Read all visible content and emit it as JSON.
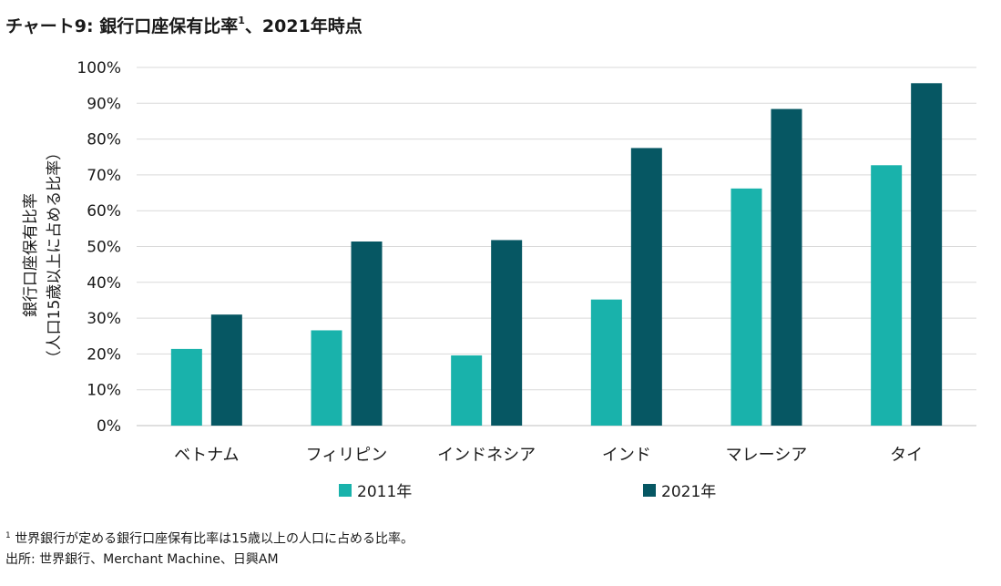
{
  "title": {
    "text": "チャート9: 銀行口座保有比率",
    "superscript": "1",
    "suffix": "、2021年時点"
  },
  "chart_data": {
    "type": "bar",
    "categories": [
      "ベトナム",
      "フィリピン",
      "インドネシア",
      "インド",
      "マレーシア",
      "タイ"
    ],
    "series": [
      {
        "name": "2011年",
        "values": [
          21.4,
          26.6,
          19.6,
          35.2,
          66.2,
          72.7
        ],
        "color": "#19b2ab"
      },
      {
        "name": "2021年",
        "values": [
          31.0,
          51.4,
          51.8,
          77.5,
          88.4,
          95.6
        ],
        "color": "#065763"
      }
    ],
    "ylim": [
      0,
      100
    ],
    "yticks": [
      "0%",
      "10%",
      "20%",
      "30%",
      "40%",
      "50%",
      "60%",
      "70%",
      "80%",
      "90%",
      "100%"
    ],
    "ylabel_line1": "銀行口座保有比率",
    "ylabel_line2": "（人口15歳以上に占める比率）",
    "grid": true,
    "legend_position": "bottom"
  },
  "footnote": {
    "marker": "1",
    "note": "世界銀行が定める銀行口座保有比率は15歳以上の人口に占める比率。",
    "source": "出所: 世界銀行、Merchant Machine、日興AM"
  }
}
